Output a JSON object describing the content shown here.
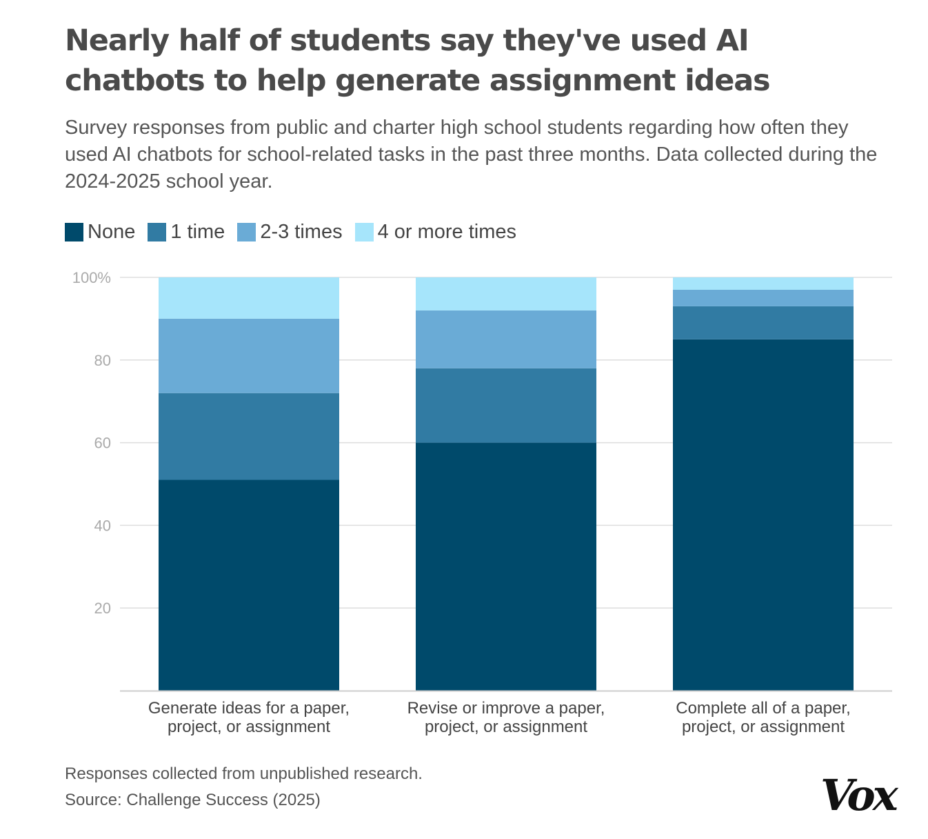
{
  "title": "Nearly half of students say they've used AI chatbots to help generate assignment ideas",
  "subtitle": "Survey responses from public and charter high school students regarding how often they used AI chatbots for school-related tasks in the past three months. Data collected during the 2024-2025 school year.",
  "note": "Responses collected from unpublished research.",
  "source": "Source: Challenge Success (2025)",
  "logo": "Vox",
  "colors": {
    "none": "#004a6b",
    "one": "#317ba3",
    "two_three": "#6aabd6",
    "four_plus": "#a6e5fb",
    "grid": "#dddddd",
    "axis": "#cccccc"
  },
  "chart_data": {
    "type": "bar",
    "stacked": true,
    "categories": [
      [
        "Generate ideas for a paper,",
        "project, or assignment"
      ],
      [
        "Revise or improve a paper,",
        "project, or assignment"
      ],
      [
        "Complete all of a paper,",
        "project, or assignment"
      ]
    ],
    "series": [
      {
        "name": "None",
        "color": "#004a6b",
        "values": [
          51,
          60,
          85
        ]
      },
      {
        "name": "1 time",
        "color": "#317ba3",
        "values": [
          21,
          18,
          8
        ]
      },
      {
        "name": "2-3 times",
        "color": "#6aabd6",
        "values": [
          18,
          14,
          4
        ]
      },
      {
        "name": "4 or more times",
        "color": "#a6e5fb",
        "values": [
          10,
          8,
          3
        ]
      }
    ],
    "ylim": [
      0,
      100
    ],
    "yticks": [
      20,
      40,
      60,
      80,
      100
    ],
    "ytick_labels": [
      "20",
      "40",
      "60",
      "80",
      "100%"
    ],
    "legend_position": "top-left",
    "grid": true
  }
}
